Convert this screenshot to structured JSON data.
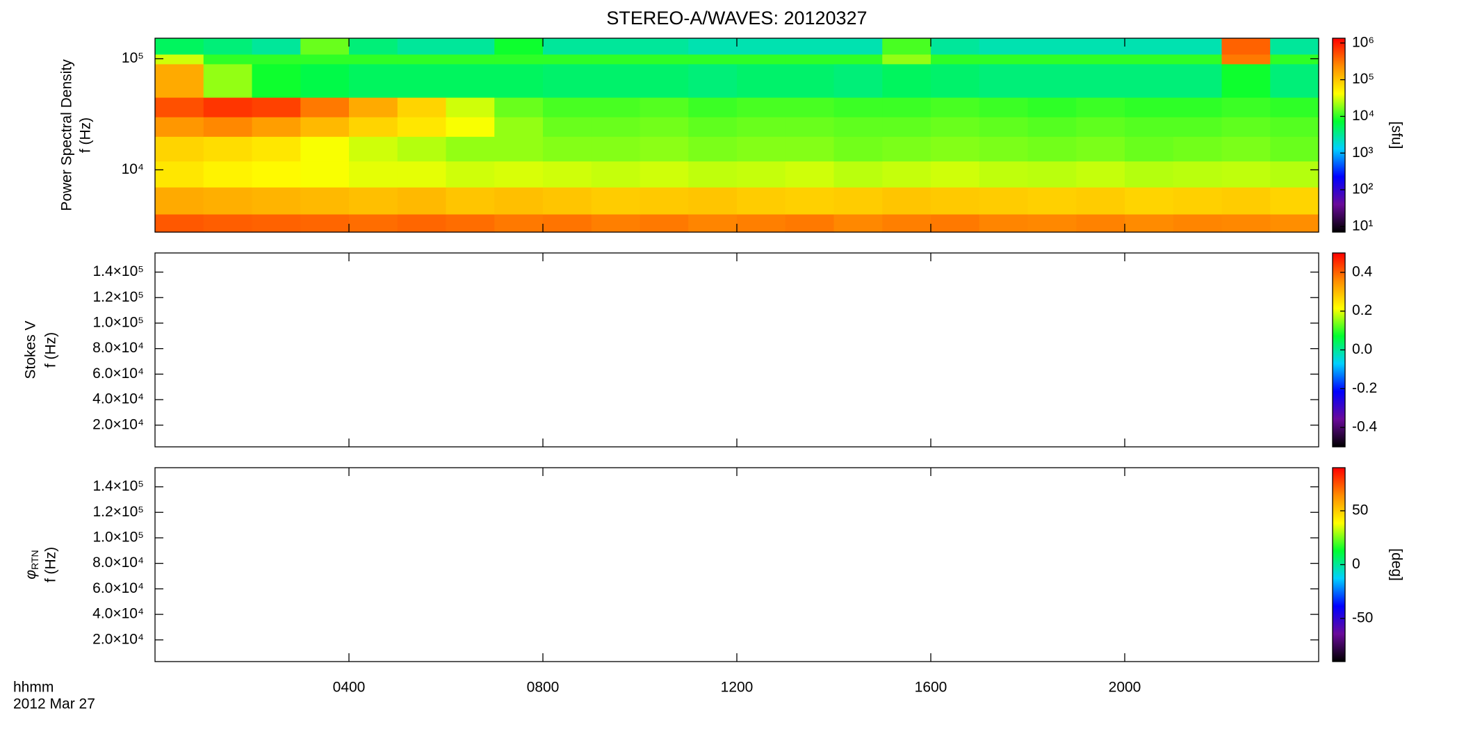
{
  "chart_data": [
    {
      "type": "heatmap",
      "title": "STEREO-A/WAVES: 20120327",
      "ylabel": [
        "Power Spectral Density",
        "f (Hz)"
      ],
      "ylog": true,
      "ylim": [
        2750,
        153000
      ],
      "yticks": [
        {
          "value": 10000,
          "label": "10⁴"
        },
        {
          "value": 100000,
          "label": "10⁵"
        }
      ],
      "xlim": [
        0,
        24
      ],
      "x_bins": [
        0,
        1,
        2,
        3,
        4,
        5,
        6,
        7,
        8,
        9,
        10,
        11,
        12,
        13,
        14,
        15,
        16,
        17,
        18,
        19,
        20,
        21,
        22,
        23,
        24
      ],
      "y_bins": [
        2750,
        4000,
        7000,
        12000,
        20000,
        30000,
        45000,
        90000,
        110000,
        153000
      ],
      "z": [
        [
          450000,
          420000,
          400000,
          380000,
          350000,
          380000,
          350000,
          300000,
          320000,
          280000,
          300000,
          260000,
          280000,
          300000,
          250000,
          280000,
          300000,
          260000,
          250000,
          270000,
          240000,
          260000,
          250000,
          230000
        ],
        [
          150000,
          140000,
          130000,
          120000,
          110000,
          120000,
          100000,
          110000,
          100000,
          90000,
          95000,
          100000,
          90000,
          85000,
          90000,
          100000,
          95000,
          90000,
          85000,
          90000,
          80000,
          85000,
          90000,
          80000
        ],
        [
          60000,
          50000,
          45000,
          40000,
          35000,
          35000,
          30000,
          32000,
          30000,
          28000,
          30000,
          27000,
          28000,
          30000,
          26000,
          28000,
          30000,
          27000,
          26000,
          28000,
          25000,
          26000,
          27000,
          25000
        ],
        [
          80000,
          70000,
          60000,
          40000,
          30000,
          25000,
          20000,
          20000,
          18000,
          18000,
          19000,
          17000,
          18000,
          18000,
          16000,
          17000,
          18000,
          17000,
          16000,
          17000,
          15000,
          16000,
          17000,
          15000
        ],
        [
          200000,
          250000,
          180000,
          120000,
          80000,
          60000,
          40000,
          20000,
          15000,
          15000,
          16000,
          14000,
          15000,
          15000,
          14000,
          14000,
          15000,
          14000,
          13000,
          14000,
          13000,
          13000,
          14000,
          13000
        ],
        [
          500000,
          700000,
          600000,
          300000,
          150000,
          80000,
          30000,
          15000,
          12000,
          12000,
          13000,
          11000,
          12000,
          12000,
          11000,
          11000,
          12000,
          11000,
          10000,
          11000,
          10000,
          10000,
          11000,
          10000
        ],
        [
          150000,
          20000,
          8000,
          6000,
          5000,
          5000,
          5000,
          5000,
          4500,
          4500,
          4500,
          4000,
          4500,
          4500,
          4000,
          5000,
          4500,
          4000,
          4000,
          4000,
          4000,
          4000,
          8000,
          4000
        ],
        [
          30000,
          10000,
          10000,
          10000,
          10000,
          10000,
          10000,
          10000,
          10000,
          10000,
          10000,
          10000,
          10000,
          10000,
          10000,
          20000,
          10000,
          10000,
          10000,
          10000,
          10000,
          10000,
          300000,
          10000
        ],
        [
          5000,
          4000,
          3000,
          15000,
          4000,
          3000,
          3000,
          8000,
          3000,
          3000,
          3000,
          2500,
          2500,
          2500,
          2500,
          12000,
          3000,
          2500,
          2500,
          2500,
          2500,
          2500,
          400000,
          3000
        ]
      ],
      "zlog": true,
      "zlim": [
        7,
        1350000
      ],
      "zticks": [
        {
          "value": 10,
          "label": "10¹"
        },
        {
          "value": 100,
          "label": "10²"
        },
        {
          "value": 1000,
          "label": "10³"
        },
        {
          "value": 10000,
          "label": "10⁴"
        },
        {
          "value": 100000,
          "label": "10⁵"
        },
        {
          "value": 1000000,
          "label": "10⁶"
        }
      ],
      "zlabel": "[sfu]",
      "colormap": [
        "#000000",
        "#6a0a9a",
        "#0000ff",
        "#00d0ff",
        "#00ff30",
        "#ffff00",
        "#ff8c00",
        "#ff0000"
      ]
    },
    {
      "type": "heatmap",
      "ylabel": [
        "Stokes V",
        "f (Hz)"
      ],
      "ylim": [
        3000,
        155000
      ],
      "yticks": [
        {
          "value": 20000,
          "label": "2.0×10⁴"
        },
        {
          "value": 40000,
          "label": "4.0×10⁴"
        },
        {
          "value": 60000,
          "label": "6.0×10⁴"
        },
        {
          "value": 80000,
          "label": "8.0×10⁴"
        },
        {
          "value": 100000,
          "label": "1.0×10⁵"
        },
        {
          "value": 120000,
          "label": "1.2×10⁵"
        },
        {
          "value": 140000,
          "label": "1.4×10⁵"
        }
      ],
      "zlim": [
        -0.5,
        0.5
      ],
      "zticks": [
        -0.4,
        -0.2,
        {
          "value": 0,
          "label": "0.0"
        },
        0.2,
        0.4
      ],
      "colormap": [
        "#000000",
        "#6a0a9a",
        "#0000ff",
        "#00d0ff",
        "#00ff30",
        "#ffff00",
        "#ff8c00",
        "#ff0000"
      ]
    },
    {
      "type": "heatmap",
      "ylabel": [
        "f (Hz)"
      ],
      "ysymbol": "φ",
      "ysymbol_sub": "RTN",
      "ylim": [
        3000,
        155000
      ],
      "yticks": [
        {
          "value": 20000,
          "label": "2.0×10⁴"
        },
        {
          "value": 40000,
          "label": "4.0×10⁴"
        },
        {
          "value": 60000,
          "label": "6.0×10⁴"
        },
        {
          "value": 80000,
          "label": "8.0×10⁴"
        },
        {
          "value": 100000,
          "label": "1.0×10⁵"
        },
        {
          "value": 120000,
          "label": "1.2×10⁵"
        },
        {
          "value": 140000,
          "label": "1.4×10⁵"
        }
      ],
      "xlim": [
        0,
        24
      ],
      "xticks": [
        {
          "value": 4,
          "label": "0400"
        },
        {
          "value": 8,
          "label": "0800"
        },
        {
          "value": 12,
          "label": "1200"
        },
        {
          "value": 16,
          "label": "1600"
        },
        {
          "value": 20,
          "label": "2000"
        }
      ],
      "xlabel": [
        "hhmm",
        "2012 Mar 27"
      ],
      "zlim": [
        -90,
        90
      ],
      "zticks": [
        -50,
        0,
        50
      ],
      "zlabel": "[deg]",
      "colormap": [
        "#000000",
        "#6a0a9a",
        "#0000ff",
        "#00d0ff",
        "#00ff30",
        "#ffff00",
        "#ff8c00",
        "#ff0000"
      ]
    }
  ]
}
